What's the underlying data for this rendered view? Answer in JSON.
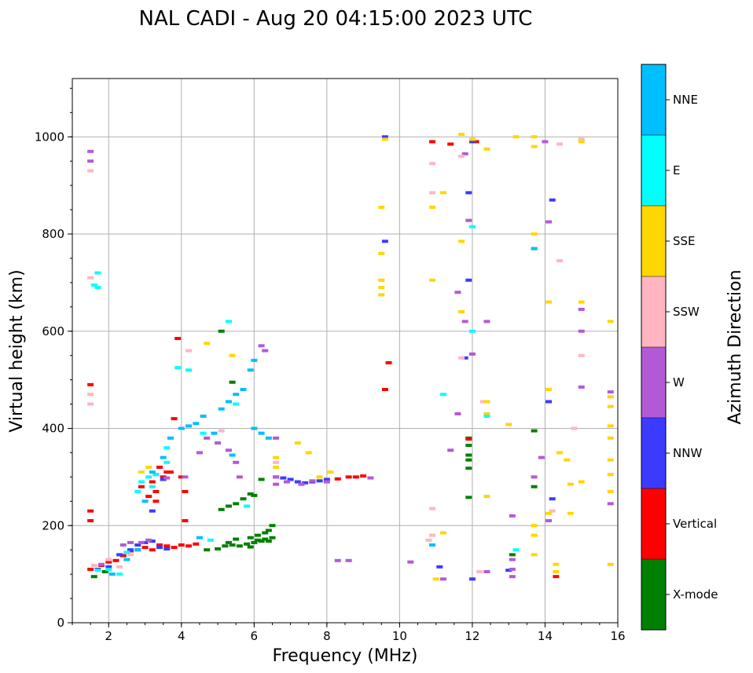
{
  "chart_data": {
    "type": "scatter",
    "title": "NAL CADI - Aug 20 04:15:00 2023 UTC",
    "xlabel": "Frequency (MHz)",
    "ylabel": "Virtual height (km)",
    "xlim": [
      1,
      16
    ],
    "ylim": [
      0,
      1120
    ],
    "xticks": [
      2,
      4,
      6,
      8,
      10,
      12,
      14,
      16
    ],
    "yticks": [
      0,
      200,
      400,
      600,
      800,
      1000
    ],
    "grid": true,
    "colorbar": {
      "label": "Azimuth Direction",
      "categories": [
        {
          "name": "X-mode",
          "color": "#008000"
        },
        {
          "name": "Vertical",
          "color": "#ff0000"
        },
        {
          "name": "NNW",
          "color": "#3b3bff"
        },
        {
          "name": "W",
          "color": "#b25ad6"
        },
        {
          "name": "SSW",
          "color": "#ffb6c1"
        },
        {
          "name": "SSE",
          "color": "#ffd700"
        },
        {
          "name": "E",
          "color": "#00ffff"
        },
        {
          "name": "NNE",
          "color": "#00bfff"
        }
      ]
    },
    "series": [
      {
        "name": "X-mode",
        "points": [
          [
            1.6,
            95
          ],
          [
            1.9,
            105
          ],
          [
            4.7,
            150
          ],
          [
            5.0,
            152
          ],
          [
            5.2,
            158
          ],
          [
            5.4,
            160
          ],
          [
            5.6,
            158
          ],
          [
            5.8,
            162
          ],
          [
            5.9,
            156
          ],
          [
            6.0,
            165
          ],
          [
            6.1,
            170
          ],
          [
            6.2,
            168
          ],
          [
            6.3,
            172
          ],
          [
            6.4,
            168
          ],
          [
            6.5,
            175
          ],
          [
            6.5,
            200
          ],
          [
            6.4,
            190
          ],
          [
            6.3,
            185
          ],
          [
            6.1,
            180
          ],
          [
            5.9,
            175
          ],
          [
            5.5,
            172
          ],
          [
            5.3,
            165
          ],
          [
            5.1,
            233
          ],
          [
            5.3,
            240
          ],
          [
            5.5,
            245
          ],
          [
            5.7,
            255
          ],
          [
            5.9,
            265
          ],
          [
            6.0,
            262
          ],
          [
            6.2,
            295
          ],
          [
            5.1,
            600
          ],
          [
            5.4,
            495
          ],
          [
            11.9,
            380
          ],
          [
            11.9,
            365
          ],
          [
            11.9,
            345
          ],
          [
            11.9,
            335
          ],
          [
            11.9,
            318
          ],
          [
            11.9,
            258
          ],
          [
            13.7,
            395
          ],
          [
            13.7,
            280
          ],
          [
            13.1,
            140
          ]
        ]
      },
      {
        "name": "Vertical",
        "points": [
          [
            1.5,
            230
          ],
          [
            1.5,
            210
          ],
          [
            1.5,
            490
          ],
          [
            1.5,
            110
          ],
          [
            1.8,
            118
          ],
          [
            2.0,
            125
          ],
          [
            2.2,
            128
          ],
          [
            2.4,
            138
          ],
          [
            2.6,
            148
          ],
          [
            2.8,
            150
          ],
          [
            3.0,
            155
          ],
          [
            3.2,
            150
          ],
          [
            3.4,
            160
          ],
          [
            3.6,
            158
          ],
          [
            3.8,
            155
          ],
          [
            4.0,
            160
          ],
          [
            4.2,
            158
          ],
          [
            4.4,
            162
          ],
          [
            3.1,
            260
          ],
          [
            3.3,
            270
          ],
          [
            3.5,
            300
          ],
          [
            3.6,
            310
          ],
          [
            3.3,
            250
          ],
          [
            3.8,
            420
          ],
          [
            3.9,
            585
          ],
          [
            4.0,
            300
          ],
          [
            4.1,
            270
          ],
          [
            4.1,
            210
          ],
          [
            3.2,
            290
          ],
          [
            3.4,
            320
          ],
          [
            3.7,
            310
          ],
          [
            2.9,
            280
          ],
          [
            8.6,
            300
          ],
          [
            8.8,
            300
          ],
          [
            9.0,
            302
          ],
          [
            9.6,
            480
          ],
          [
            9.7,
            535
          ],
          [
            10.9,
            990
          ],
          [
            11.4,
            985
          ],
          [
            12.1,
            990
          ],
          [
            11.9,
            378
          ],
          [
            14.3,
            95
          ],
          [
            8.3,
            296
          ]
        ]
      },
      {
        "name": "NNW",
        "points": [
          [
            1.7,
            110
          ],
          [
            2.0,
            115
          ],
          [
            2.3,
            140
          ],
          [
            2.6,
            150
          ],
          [
            2.8,
            160
          ],
          [
            3.0,
            165
          ],
          [
            3.2,
            168
          ],
          [
            3.4,
            155
          ],
          [
            3.6,
            152
          ],
          [
            3.3,
            305
          ],
          [
            3.5,
            295
          ],
          [
            3.2,
            230
          ],
          [
            6.6,
            300
          ],
          [
            6.8,
            298
          ],
          [
            7.0,
            295
          ],
          [
            7.2,
            290
          ],
          [
            7.4,
            288
          ],
          [
            7.6,
            290
          ],
          [
            7.8,
            292
          ],
          [
            8.0,
            295
          ],
          [
            9.6,
            1000
          ],
          [
            11.1,
            115
          ],
          [
            11.8,
            545
          ],
          [
            11.9,
            705
          ],
          [
            11.9,
            885
          ],
          [
            12.0,
            990
          ],
          [
            12.0,
            90
          ],
          [
            13.0,
            108
          ],
          [
            13.7,
            770
          ],
          [
            14.2,
            870
          ],
          [
            14.2,
            255
          ],
          [
            14.1,
            455
          ],
          [
            9.6,
            785
          ]
        ]
      },
      {
        "name": "W",
        "points": [
          [
            1.5,
            950
          ],
          [
            1.5,
            970
          ],
          [
            1.8,
            120
          ],
          [
            2.4,
            160
          ],
          [
            2.6,
            165
          ],
          [
            2.9,
            165
          ],
          [
            3.1,
            170
          ],
          [
            3.6,
            298
          ],
          [
            4.1,
            300
          ],
          [
            4.5,
            350
          ],
          [
            4.7,
            380
          ],
          [
            5.0,
            370
          ],
          [
            5.3,
            355
          ],
          [
            5.5,
            330
          ],
          [
            5.6,
            300
          ],
          [
            6.2,
            570
          ],
          [
            6.3,
            560
          ],
          [
            6.6,
            300
          ],
          [
            6.6,
            285
          ],
          [
            6.6,
            380
          ],
          [
            6.9,
            290
          ],
          [
            7.3,
            285
          ],
          [
            7.6,
            292
          ],
          [
            8.0,
            290
          ],
          [
            8.3,
            128
          ],
          [
            8.6,
            128
          ],
          [
            9.2,
            298
          ],
          [
            10.3,
            125
          ],
          [
            11.2,
            90
          ],
          [
            11.8,
            965
          ],
          [
            11.6,
            680
          ],
          [
            11.6,
            430
          ],
          [
            11.8,
            620
          ],
          [
            12.4,
            620
          ],
          [
            12.4,
            105
          ],
          [
            13.1,
            95
          ],
          [
            13.1,
            110
          ],
          [
            13.1,
            130
          ],
          [
            13.1,
            220
          ],
          [
            13.7,
            300
          ],
          [
            13.9,
            340
          ],
          [
            14.0,
            990
          ],
          [
            14.1,
            825
          ],
          [
            14.1,
            210
          ],
          [
            15.0,
            485
          ],
          [
            15.0,
            600
          ],
          [
            15.0,
            645
          ],
          [
            15.8,
            245
          ],
          [
            15.8,
            475
          ],
          [
            11.9,
            828
          ],
          [
            12.0,
            553
          ],
          [
            11.4,
            355
          ]
        ]
      },
      {
        "name": "SSW",
        "points": [
          [
            1.5,
            710
          ],
          [
            1.5,
            930
          ],
          [
            1.5,
            470
          ],
          [
            1.5,
            450
          ],
          [
            1.6,
            118
          ],
          [
            2.0,
            130
          ],
          [
            2.3,
            115
          ],
          [
            2.6,
            140
          ],
          [
            4.2,
            560
          ],
          [
            5.1,
            395
          ],
          [
            6.6,
            330
          ],
          [
            10.9,
            235
          ],
          [
            10.9,
            180
          ],
          [
            10.8,
            170
          ],
          [
            10.9,
            945
          ],
          [
            10.9,
            885
          ],
          [
            11.7,
            960
          ],
          [
            11.7,
            545
          ],
          [
            12.2,
            105
          ],
          [
            12.3,
            455
          ],
          [
            14.2,
            230
          ],
          [
            14.4,
            985
          ],
          [
            14.4,
            745
          ],
          [
            15.0,
            550
          ],
          [
            15.0,
            995
          ],
          [
            14.8,
            400
          ]
        ]
      },
      {
        "name": "SSE",
        "points": [
          [
            4.7,
            575
          ],
          [
            5.4,
            550
          ],
          [
            9.5,
            855
          ],
          [
            9.5,
            760
          ],
          [
            9.5,
            705
          ],
          [
            9.5,
            690
          ],
          [
            9.5,
            675
          ],
          [
            9.6,
            995
          ],
          [
            10.9,
            855
          ],
          [
            10.9,
            705
          ],
          [
            11.0,
            90
          ],
          [
            11.2,
            185
          ],
          [
            11.2,
            885
          ],
          [
            11.7,
            1005
          ],
          [
            11.7,
            785
          ],
          [
            11.7,
            640
          ],
          [
            12.0,
            995
          ],
          [
            12.4,
            975
          ],
          [
            12.4,
            455
          ],
          [
            12.4,
            260
          ],
          [
            12.4,
            430
          ],
          [
            13.0,
            408
          ],
          [
            13.2,
            1000
          ],
          [
            13.7,
            1000
          ],
          [
            13.7,
            980
          ],
          [
            13.7,
            200
          ],
          [
            13.7,
            180
          ],
          [
            13.7,
            140
          ],
          [
            13.7,
            800
          ],
          [
            14.1,
            660
          ],
          [
            14.1,
            480
          ],
          [
            14.1,
            225
          ],
          [
            14.3,
            120
          ],
          [
            14.3,
            105
          ],
          [
            14.4,
            350
          ],
          [
            14.6,
            335
          ],
          [
            14.7,
            225
          ],
          [
            14.7,
            285
          ],
          [
            15.0,
            290
          ],
          [
            15.0,
            660
          ],
          [
            15.0,
            990
          ],
          [
            15.8,
            620
          ],
          [
            15.8,
            465
          ],
          [
            15.8,
            445
          ],
          [
            15.8,
            405
          ],
          [
            15.8,
            380
          ],
          [
            15.8,
            335
          ],
          [
            15.8,
            305
          ],
          [
            15.8,
            270
          ],
          [
            15.8,
            120
          ],
          [
            6.6,
            320
          ],
          [
            6.6,
            340
          ],
          [
            7.2,
            370
          ],
          [
            7.5,
            350
          ],
          [
            7.8,
            300
          ],
          [
            8.1,
            310
          ],
          [
            2.9,
            310
          ],
          [
            3.1,
            320
          ]
        ]
      },
      {
        "name": "E",
        "points": [
          [
            1.6,
            695
          ],
          [
            1.7,
            720
          ],
          [
            1.7,
            690
          ],
          [
            1.7,
            108
          ],
          [
            2.0,
            110
          ],
          [
            2.3,
            100
          ],
          [
            2.5,
            145
          ],
          [
            2.8,
            270
          ],
          [
            2.9,
            290
          ],
          [
            3.1,
            300
          ],
          [
            3.2,
            280
          ],
          [
            3.3,
            305
          ],
          [
            3.6,
            330
          ],
          [
            3.6,
            360
          ],
          [
            3.9,
            525
          ],
          [
            4.2,
            520
          ],
          [
            4.6,
            390
          ],
          [
            4.8,
            170
          ],
          [
            5.5,
            450
          ],
          [
            5.3,
            620
          ],
          [
            5.8,
            240
          ],
          [
            10.9,
            160
          ],
          [
            11.2,
            470
          ],
          [
            12.0,
            600
          ],
          [
            12.0,
            815
          ],
          [
            12.4,
            425
          ],
          [
            13.2,
            150
          ]
        ]
      },
      {
        "name": "NNE",
        "points": [
          [
            2.1,
            100
          ],
          [
            2.5,
            130
          ],
          [
            2.8,
            150
          ],
          [
            3.0,
            250
          ],
          [
            3.2,
            310
          ],
          [
            3.5,
            340
          ],
          [
            3.7,
            380
          ],
          [
            4.0,
            400
          ],
          [
            4.2,
            405
          ],
          [
            4.4,
            410
          ],
          [
            4.6,
            425
          ],
          [
            4.9,
            390
          ],
          [
            5.1,
            440
          ],
          [
            5.3,
            455
          ],
          [
            5.5,
            470
          ],
          [
            5.7,
            480
          ],
          [
            5.9,
            520
          ],
          [
            6.0,
            540
          ],
          [
            6.0,
            400
          ],
          [
            6.2,
            390
          ],
          [
            6.4,
            380
          ],
          [
            5.4,
            345
          ],
          [
            4.5,
            175
          ],
          [
            10.9,
            160
          ],
          [
            13.7,
            770
          ]
        ]
      }
    ]
  }
}
